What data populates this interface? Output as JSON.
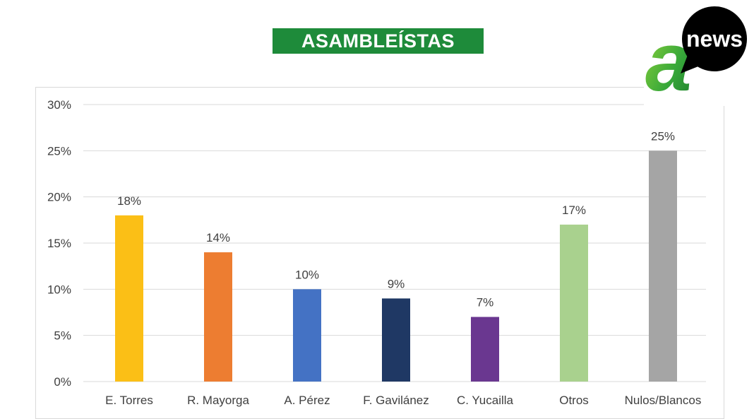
{
  "title": "ASAMBLEÍSTAS",
  "logo": {
    "text": "news",
    "letter": "a"
  },
  "colors": {
    "banner": "#1e8b3a",
    "grid": "#d9d9d9",
    "text": "#404040"
  },
  "chart_data": {
    "type": "bar",
    "categories": [
      "E. Torres",
      "R. Mayorga",
      "A. Pérez",
      "F. Gavilánez",
      "C. Yucailla",
      "Otros",
      "Nulos/Blancos"
    ],
    "values": [
      18,
      14,
      10,
      9,
      7,
      17,
      25
    ],
    "data_labels": [
      "18%",
      "14%",
      "10%",
      "9%",
      "7%",
      "17%",
      "25%"
    ],
    "bar_colors": [
      "#fbbf16",
      "#ed7d31",
      "#4472c4",
      "#1f3864",
      "#6a3790",
      "#a9d18e",
      "#a5a5a5"
    ],
    "y_ticks": [
      0,
      5,
      10,
      15,
      20,
      25,
      30
    ],
    "y_tick_labels": [
      "0%",
      "5%",
      "10%",
      "15%",
      "20%",
      "25%",
      "30%"
    ],
    "ylim": [
      0,
      30
    ],
    "grid": true,
    "legend": "none"
  }
}
